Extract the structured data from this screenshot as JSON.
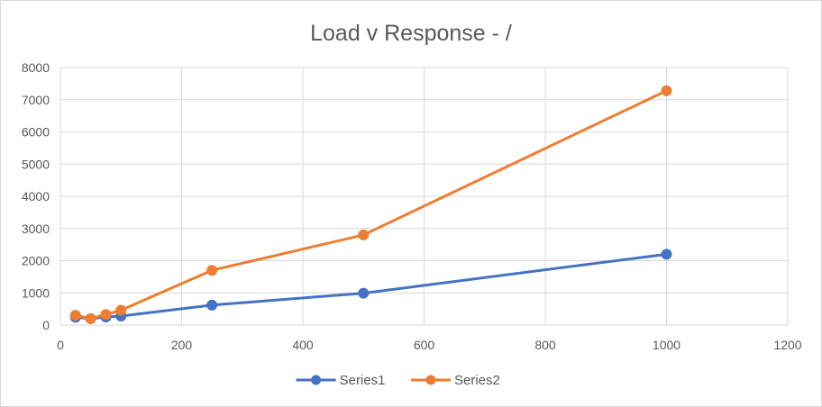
{
  "chart_data": {
    "type": "scatter",
    "title": "Load v Response - /",
    "xlabel": "",
    "ylabel": "",
    "xlim": [
      0,
      1200
    ],
    "ylim": [
      0,
      8000
    ],
    "x_ticks": [
      0,
      200,
      400,
      600,
      800,
      1000,
      1200
    ],
    "y_ticks": [
      0,
      1000,
      2000,
      3000,
      4000,
      5000,
      6000,
      7000,
      8000
    ],
    "grid": true,
    "lines_connected": true,
    "legend_position": "bottom",
    "series": [
      {
        "name": "Series1",
        "color": "#4472c4",
        "x": [
          25,
          50,
          75,
          100,
          250,
          500,
          1000
        ],
        "y": [
          240,
          200,
          250,
          280,
          620,
          990,
          2200
        ]
      },
      {
        "name": "Series2",
        "color": "#ed7d31",
        "x": [
          25,
          50,
          75,
          100,
          250,
          500,
          1000
        ],
        "y": [
          300,
          200,
          330,
          460,
          1700,
          2800,
          7280
        ]
      }
    ]
  }
}
